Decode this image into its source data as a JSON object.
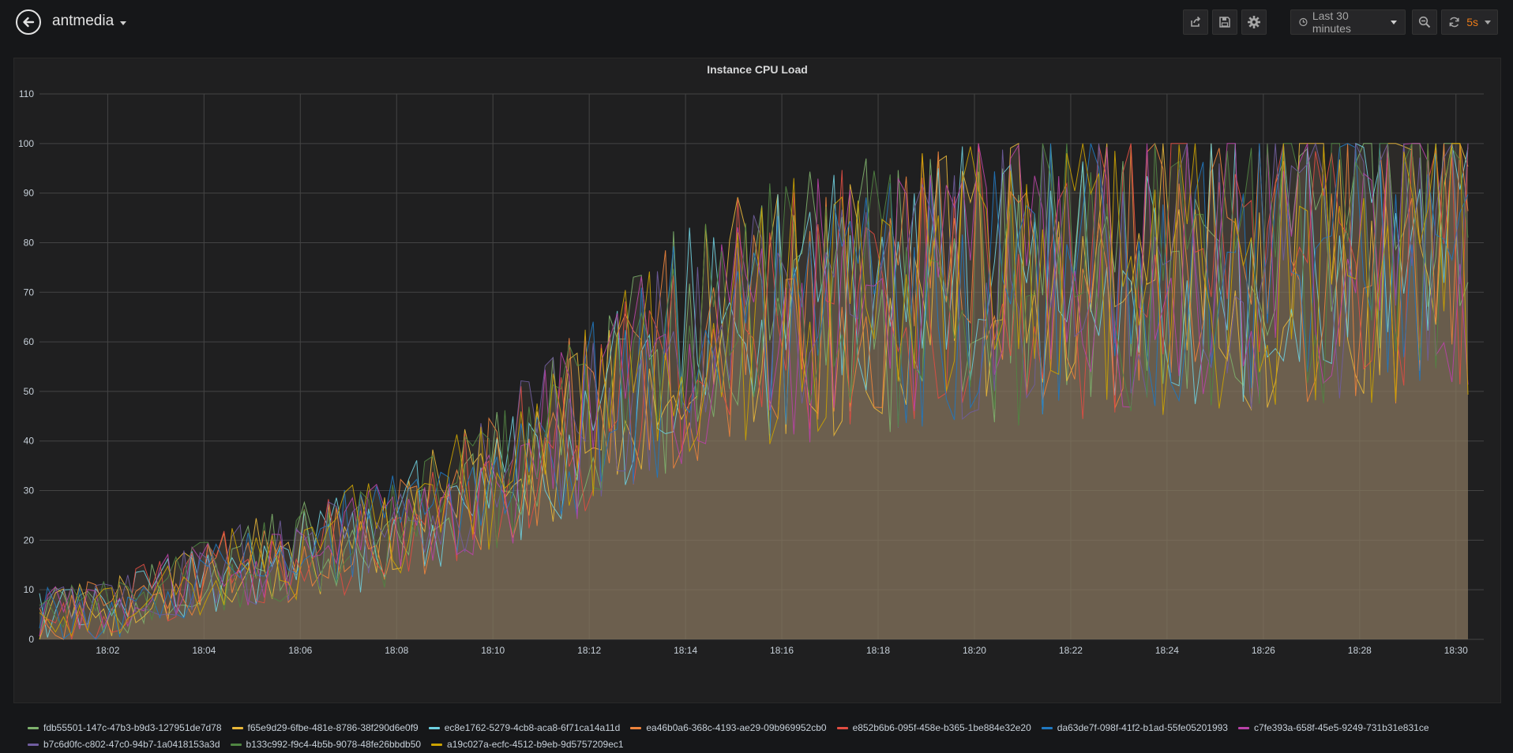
{
  "header": {
    "dashboard_title": "antmedia",
    "time_range_label": "Last 30 minutes",
    "refresh_interval": "5s"
  },
  "panel": {
    "title": "Instance CPU Load"
  },
  "colors": {
    "background": "#161719",
    "panel_bg": "#1f1f20",
    "grid": "#444444",
    "area_fill": "#8a7a64",
    "refresh_accent": "#eb7b18"
  },
  "chart_data": {
    "type": "line",
    "title": "Instance CPU Load",
    "xlabel": "",
    "ylabel": "",
    "ylim": [
      0,
      110
    ],
    "y_ticks": [
      0,
      10,
      20,
      30,
      40,
      50,
      60,
      70,
      80,
      90,
      100,
      110
    ],
    "x_ticks": [
      "18:02",
      "18:04",
      "18:06",
      "18:08",
      "18:10",
      "18:12",
      "18:14",
      "18:16",
      "18:18",
      "18:20",
      "18:22",
      "18:24",
      "18:26",
      "18:28",
      "18:30"
    ],
    "x_range_minutes": [
      "18:00:35",
      "18:30:15"
    ],
    "sample_interval_seconds": 10,
    "grid": true,
    "fill": true,
    "legend_placement": "bottom",
    "trend_note_points": [
      [
        "18:00:35",
        5
      ],
      [
        "18:02:00",
        6
      ],
      [
        "18:04:00",
        12
      ],
      [
        "18:06:00",
        18
      ],
      [
        "18:08:00",
        22
      ],
      [
        "18:10:00",
        32
      ],
      [
        "18:12:00",
        45
      ],
      [
        "18:14:00",
        60
      ],
      [
        "18:16:00",
        66
      ],
      [
        "18:18:00",
        70
      ],
      [
        "18:20:00",
        72
      ],
      [
        "18:22:00",
        73
      ],
      [
        "18:24:00",
        75
      ],
      [
        "18:26:00",
        77
      ],
      [
        "18:28:00",
        79
      ],
      [
        "18:30:15",
        80
      ]
    ],
    "series": [
      {
        "name": "fdb55501-147c-47b3-b9d3-127951de7d78",
        "color": "#7eb26d"
      },
      {
        "name": "f65e9d29-6fbe-481e-8786-38f290d6e0f9",
        "color": "#eab839"
      },
      {
        "name": "ec8e1762-5279-4cb8-aca8-6f71ca14a11d",
        "color": "#6ed0e0"
      },
      {
        "name": "ea46b0a6-368c-4193-ae29-09b969952cb0",
        "color": "#ef843c"
      },
      {
        "name": "e852b6b6-095f-458e-b365-1be884e32e20",
        "color": "#e24d42"
      },
      {
        "name": "da63de7f-098f-41f2-b1ad-55fe05201993",
        "color": "#1f78c1"
      },
      {
        "name": "c7fe393a-658f-45e5-9249-731b31e831ce",
        "color": "#ba43a9"
      },
      {
        "name": "b7c6d0fc-c802-47c0-94b7-1a0418153a3d",
        "color": "#705da0"
      },
      {
        "name": "b133c992-f9c4-4b5b-9078-48fe26bbdb50",
        "color": "#508642"
      },
      {
        "name": "a19c027a-ecfc-4512-b9eb-9d5757209ec1",
        "color": "#cca300"
      }
    ]
  }
}
